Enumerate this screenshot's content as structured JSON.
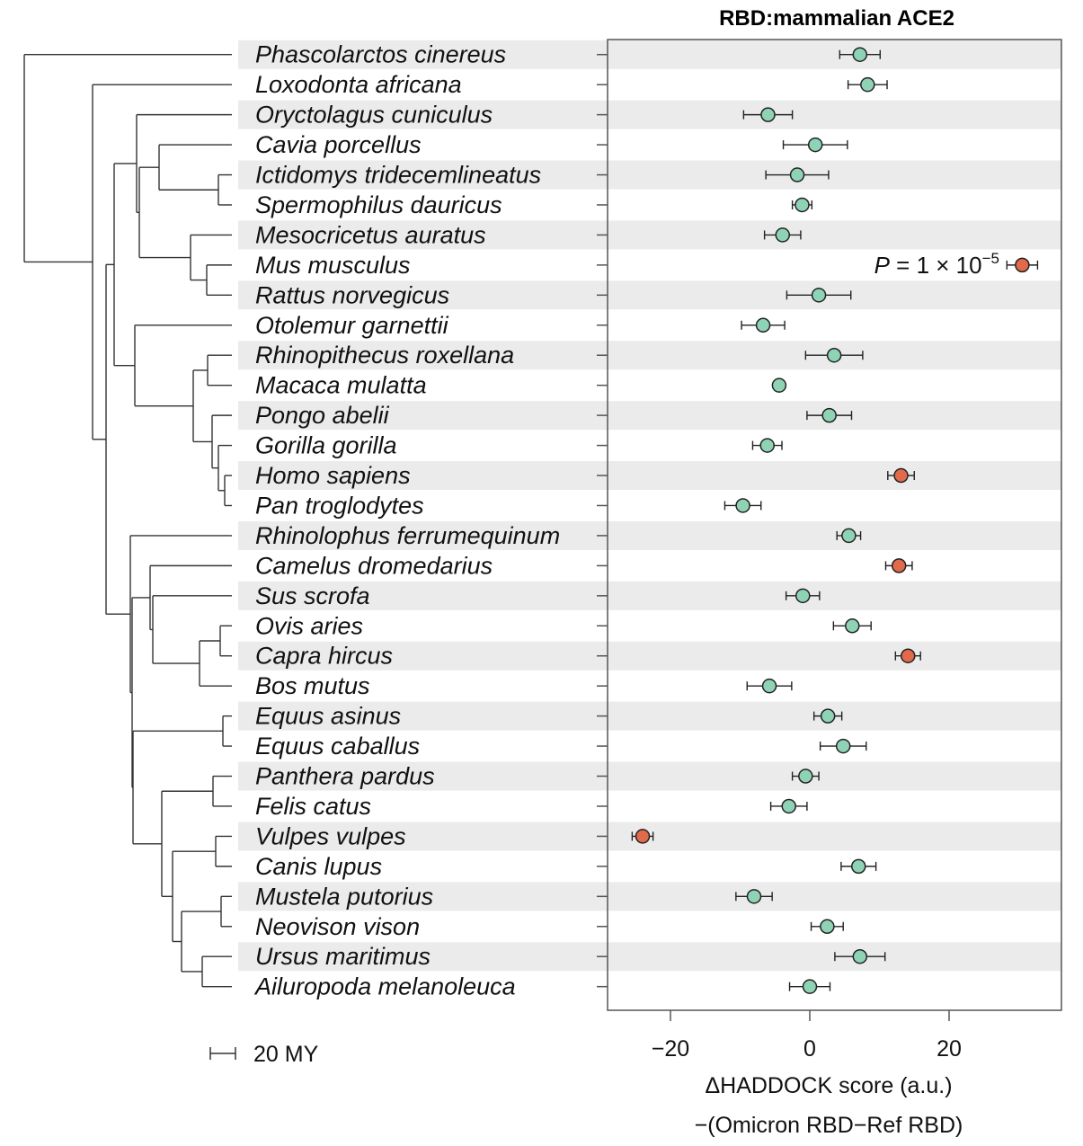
{
  "chart_data": {
    "type": "scatter",
    "title": "RBD:mammalian ACE2",
    "xlabel_line1": "ΔHADDOCK score (a.u.)",
    "xlabel_line2": "−(Omicron RBD−Ref RBD)",
    "xlim": [
      -28,
      35
    ],
    "xticks": [
      -20,
      0,
      20
    ],
    "xtick_labels": [
      "−20",
      "0",
      "20"
    ],
    "grid": false,
    "row_shading": "alternating-gray",
    "colors": {
      "normal": "#8fd3b6",
      "significant": "#e06a4a",
      "stroke": "#222222",
      "band": "#ebebeb"
    },
    "annotation": {
      "prefix": "P",
      "text": " = 1 × 10",
      "superscript": "−5",
      "row": 7
    },
    "scale_bar_label": "20 MY",
    "species": [
      "Phascolarctos cinereus",
      "Loxodonta africana",
      "Oryctolagus cuniculus",
      "Cavia porcellus",
      "Ictidomys tridecemlineatus",
      "Spermophilus dauricus",
      "Mesocricetus auratus",
      "Mus musculus",
      "Rattus norvegicus",
      "Otolemur garnettii",
      "Rhinopithecus roxellana",
      "Macaca mulatta",
      "Pongo abelii",
      "Gorilla gorilla",
      "Homo sapiens",
      "Pan troglodytes",
      "Rhinolophus ferrumequinum",
      "Camelus dromedarius",
      "Sus scrofa",
      "Ovis aries",
      "Capra hircus",
      "Bos mutus",
      "Equus asinus",
      "Equus caballus",
      "Panthera pardus",
      "Felis catus",
      "Vulpes vulpes",
      "Canis lupus",
      "Mustela putorius",
      "Neovison vison",
      "Ursus maritimus",
      "Ailuropoda melanoleuca"
    ],
    "values": [
      7.2,
      8.3,
      -6.0,
      0.8,
      -1.8,
      -1.1,
      -3.9,
      30.5,
      1.3,
      -6.7,
      3.5,
      -4.4,
      2.8,
      -6.1,
      13.1,
      -9.6,
      5.6,
      12.8,
      -1.0,
      6.1,
      14.1,
      -5.8,
      2.6,
      4.8,
      -0.6,
      -3.0,
      -24.0,
      7.0,
      -8.0,
      2.5,
      7.2,
      0.0
    ],
    "errors": [
      2.9,
      2.8,
      3.5,
      4.6,
      4.5,
      1.4,
      2.6,
      2.2,
      4.6,
      3.1,
      4.1,
      0.6,
      3.2,
      2.1,
      1.9,
      2.6,
      1.7,
      1.9,
      2.4,
      2.7,
      1.8,
      3.2,
      2.0,
      3.3,
      1.9,
      2.6,
      1.5,
      2.5,
      2.6,
      2.3,
      3.6,
      2.9
    ],
    "significant": [
      false,
      false,
      false,
      false,
      false,
      false,
      false,
      true,
      false,
      false,
      false,
      false,
      false,
      false,
      true,
      false,
      false,
      true,
      false,
      false,
      true,
      false,
      false,
      false,
      false,
      false,
      true,
      false,
      false,
      false,
      false,
      false
    ]
  }
}
